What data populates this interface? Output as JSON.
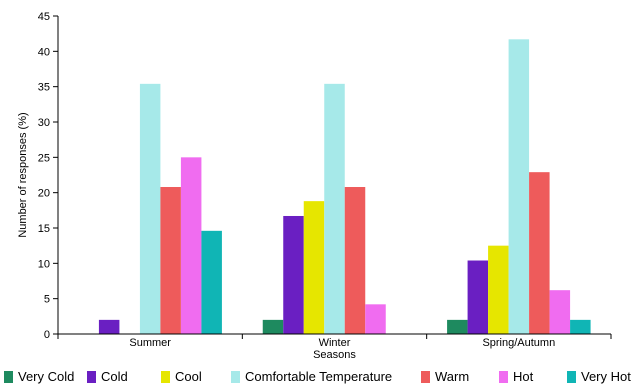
{
  "chart_data": {
    "type": "bar",
    "title": "",
    "xlabel": "Seasons",
    "ylabel": "Number of responses (%)",
    "ylim": [
      0,
      45
    ],
    "yticks": [
      0,
      5,
      10,
      15,
      20,
      25,
      30,
      35,
      40,
      45
    ],
    "grid": false,
    "legend_position": "bottom",
    "categories": [
      "Summer",
      "Winter",
      "Spring/Autumn"
    ],
    "series": [
      {
        "name": "Very Cold",
        "color": "#1e8a5f",
        "values": [
          0,
          2,
          2
        ]
      },
      {
        "name": "Cold",
        "color": "#6a1fc2",
        "values": [
          2,
          16.7,
          10.4
        ]
      },
      {
        "name": "Cool",
        "color": "#e6e600",
        "values": [
          0,
          18.8,
          12.5
        ]
      },
      {
        "name": "Comfortable Temperature",
        "color": "#a6e9e9",
        "values": [
          35.4,
          35.4,
          41.7
        ]
      },
      {
        "name": "Warm",
        "color": "#ee5b5b",
        "values": [
          20.8,
          20.8,
          22.9
        ]
      },
      {
        "name": "Hot",
        "color": "#f06cf0",
        "values": [
          25,
          4.2,
          6.2
        ]
      },
      {
        "name": "Very Hot",
        "color": "#10b5b5",
        "values": [
          14.6,
          0,
          2
        ]
      }
    ]
  }
}
